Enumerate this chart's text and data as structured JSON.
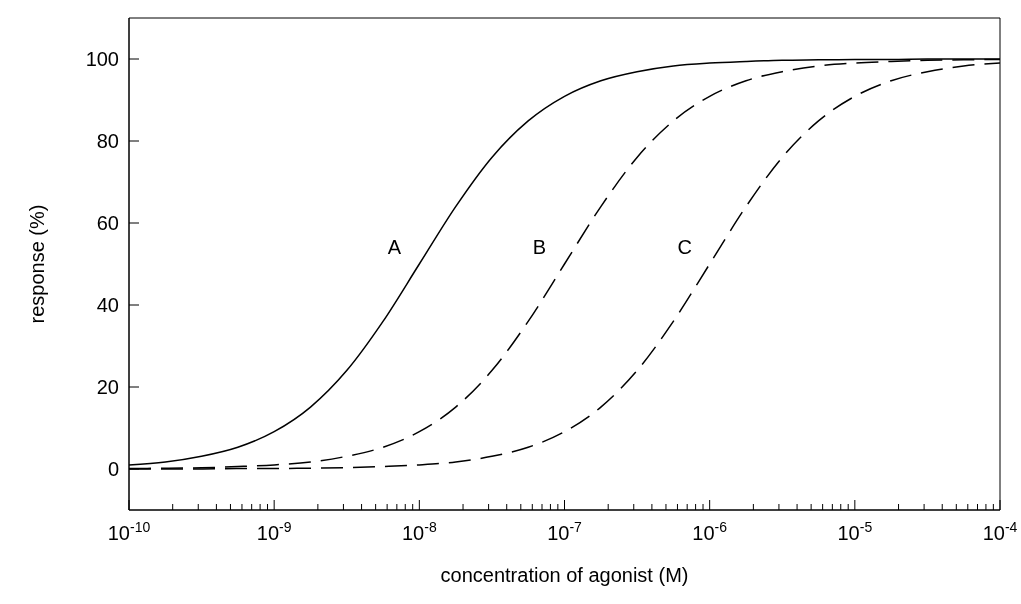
{
  "chart_data": {
    "type": "line",
    "xlabel": "concentration of agonist (M)",
    "ylabel": "response (%)",
    "log": "x",
    "marker": "none",
    "x": [
      1e-10,
      1.78e-10,
      3.16e-10,
      5.62e-10,
      1e-09,
      1.78e-09,
      3.16e-09,
      5.62e-09,
      1e-08,
      1.78e-08,
      3.16e-08,
      5.62e-08,
      1e-07,
      1.78e-07,
      3.16e-07,
      5.62e-07,
      1e-06,
      1.78e-06,
      3.16e-06,
      5.62e-06,
      1e-05,
      1.78e-05,
      3.16e-05,
      5.62e-05,
      0.0001
    ],
    "series": [
      {
        "name": "A",
        "color": "#000000",
        "line_style": "solid",
        "values": [
          1.0,
          1.7,
          3.1,
          5.3,
          9.1,
          15.1,
          24,
          36,
          50,
          64,
          76,
          84.9,
          90.9,
          94.7,
          96.9,
          98.3,
          99,
          99.4,
          99.7,
          99.8,
          99.9,
          99.9,
          100,
          100,
          100
        ]
      },
      {
        "name": "B",
        "color": "#000000",
        "line_style": "dashed",
        "values": [
          0.1,
          0.2,
          0.3,
          0.6,
          1.0,
          1.7,
          3.1,
          5.3,
          9.1,
          15.1,
          24,
          36,
          50,
          64,
          76,
          84.9,
          90.9,
          94.7,
          96.9,
          98.3,
          99,
          99.4,
          99.7,
          99.8,
          99.9
        ]
      },
      {
        "name": "C",
        "color": "#000000",
        "line_style": "dashed",
        "values": [
          0,
          0,
          0,
          0.1,
          0.1,
          0.2,
          0.3,
          0.6,
          1.0,
          1.7,
          3.1,
          5.3,
          9.1,
          15.1,
          24,
          36,
          50,
          64,
          76,
          84.9,
          90.9,
          94.7,
          96.9,
          98.3,
          99
        ]
      }
    ],
    "xlim": [
      1e-10,
      0.0001
    ],
    "xticks": [
      {
        "value": 1e-10,
        "label": "10$^{-10}$"
      },
      {
        "value": 2e-10,
        "label": null
      },
      {
        "value": 3e-10,
        "label": null
      },
      {
        "value": 4e-10,
        "label": null
      },
      {
        "value": 5e-10,
        "label": null
      },
      {
        "value": 6e-10,
        "label": null
      },
      {
        "value": 7e-10,
        "label": null
      },
      {
        "value": 8e-10,
        "label": null
      },
      {
        "value": 9e-10,
        "label": null
      },
      {
        "value": 1e-09,
        "label": "10$^{-9}$"
      },
      {
        "value": 2e-09,
        "label": null
      },
      {
        "value": 3e-09,
        "label": null
      },
      {
        "value": 4e-09,
        "label": null
      },
      {
        "value": 5e-09,
        "label": null
      },
      {
        "value": 6e-09,
        "label": null
      },
      {
        "value": 7e-09,
        "label": null
      },
      {
        "value": 8e-09,
        "label": null
      },
      {
        "value": 9e-09,
        "label": null
      },
      {
        "value": 1e-08,
        "label": "10$^{-8}$"
      },
      {
        "value": 2e-08,
        "label": null
      },
      {
        "value": 3e-08,
        "label": null
      },
      {
        "value": 4e-08,
        "label": null
      },
      {
        "value": 5e-08,
        "label": null
      },
      {
        "value": 6e-08,
        "label": null
      },
      {
        "value": 7e-08,
        "label": null
      },
      {
        "value": 8e-08,
        "label": null
      },
      {
        "value": 9e-08,
        "label": null
      },
      {
        "value": 1e-07,
        "label": "10$^{-7}$"
      },
      {
        "value": 2e-07,
        "label": null
      },
      {
        "value": 3e-07,
        "label": null
      },
      {
        "value": 4e-07,
        "label": null
      },
      {
        "value": 5e-07,
        "label": null
      },
      {
        "value": 6e-07,
        "label": null
      },
      {
        "value": 7e-07,
        "label": null
      },
      {
        "value": 8e-07,
        "label": null
      },
      {
        "value": 9e-07,
        "label": null
      },
      {
        "value": 1e-06,
        "label": "10$^{-6}$"
      },
      {
        "value": 2e-06,
        "label": null
      },
      {
        "value": 3e-06,
        "label": null
      },
      {
        "value": 4e-06,
        "label": null
      },
      {
        "value": 5e-06,
        "label": null
      },
      {
        "value": 6e-06,
        "label": null
      },
      {
        "value": 7e-06,
        "label": null
      },
      {
        "value": 8e-06,
        "label": null
      },
      {
        "value": 9e-06,
        "label": null
      },
      {
        "value": 1e-05,
        "label": "10$^{-5}$"
      },
      {
        "value": 2e-05,
        "label": null
      },
      {
        "value": 3e-05,
        "label": null
      },
      {
        "value": 4e-05,
        "label": null
      },
      {
        "value": 5e-05,
        "label": null
      },
      {
        "value": 6e-05,
        "label": null
      },
      {
        "value": 7e-05,
        "label": null
      },
      {
        "value": 8e-05,
        "label": null
      },
      {
        "value": 9e-05,
        "label": null
      },
      {
        "value": 0.0001,
        "label": "10$^{-4}$"
      }
    ],
    "ylim": [
      -10,
      110
    ],
    "yticks": [
      0,
      20,
      40,
      60,
      80,
      100
    ]
  }
}
